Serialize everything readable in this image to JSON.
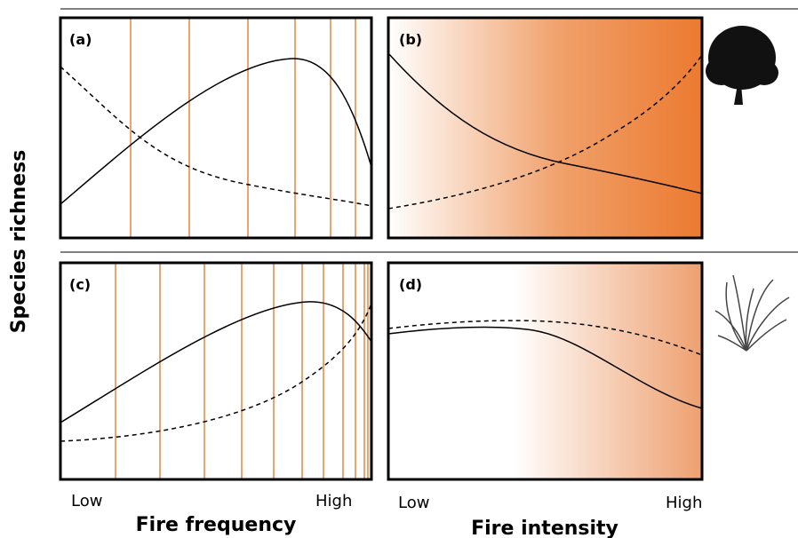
{
  "y_axis_label": "Species richness",
  "panels": [
    {
      "label": "(a)"
    },
    {
      "label": "(b)"
    },
    {
      "label": "(c)"
    },
    {
      "label": "(d)"
    }
  ],
  "x_axes": [
    {
      "low": "Low",
      "high": "High",
      "title": "Fire frequency"
    },
    {
      "low": "Low",
      "high": "High",
      "title": "Fire intensity"
    }
  ]
}
